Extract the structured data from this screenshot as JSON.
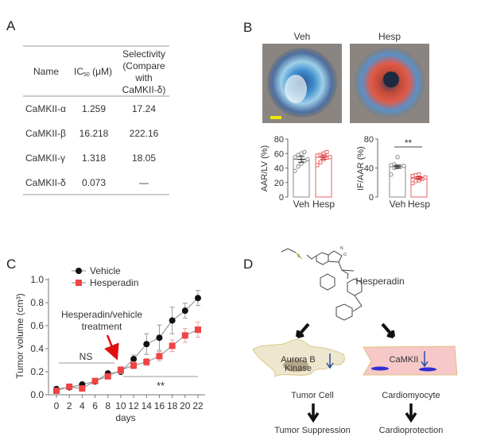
{
  "panels": {
    "a": "A",
    "b": "B",
    "c": "C",
    "d": "D"
  },
  "table": {
    "headers": {
      "name": "Name",
      "ic50": "IC",
      "ic50_sub": "50",
      "ic50_unit": " (μM)",
      "selectivity": [
        "Selectivity",
        "(Compare",
        "with",
        "CaMKII-δ)"
      ]
    },
    "rows": [
      {
        "name": "CaMKII-α",
        "ic50": "1.259",
        "selectivity": "17.24"
      },
      {
        "name": "CaMKII-β",
        "ic50": "16.218",
        "selectivity": "222.16"
      },
      {
        "name": "CaMKII-γ",
        "ic50": "1.318",
        "selectivity": "18.05"
      },
      {
        "name": "CaMKII-δ",
        "ic50": "0.073",
        "selectivity": "—"
      }
    ]
  },
  "heart_images": {
    "veh_label": "Veh",
    "hesp_label": "Hesp",
    "scale_bar_color": "#f2e600"
  },
  "chart_data": [
    {
      "type": "bar",
      "ylabel": "AAR/LV (%)",
      "categories": [
        "Veh",
        "Hesp"
      ],
      "values": [
        52,
        55
      ],
      "errors": [
        4,
        3
      ],
      "points": [
        [
          36,
          42,
          46,
          50,
          52,
          55,
          58,
          60,
          62
        ],
        [
          44,
          48,
          52,
          54,
          55,
          57,
          58,
          60,
          62
        ]
      ],
      "yticks": [
        "0",
        "20",
        "40",
        "60",
        "80"
      ],
      "ylim": [
        0,
        80
      ],
      "colors": [
        "#888888",
        "#e86060"
      ]
    },
    {
      "type": "bar",
      "ylabel": "IF/AAR (%)",
      "categories": [
        "Veh",
        "Hesp"
      ],
      "values": [
        42,
        26
      ],
      "errors": [
        2,
        2
      ],
      "points": [
        [
          31,
          40,
          41,
          42,
          43,
          44,
          45,
          55
        ],
        [
          19,
          22,
          23,
          25,
          27,
          29,
          30,
          31
        ]
      ],
      "yticks": [
        "0",
        "40",
        "80"
      ],
      "ylim": [
        0,
        80
      ],
      "significance": "**",
      "colors": [
        "#888888",
        "#e86060"
      ]
    },
    {
      "type": "line",
      "xlabel": "days",
      "ylabel": "Tumor volume (cm³)",
      "x": [
        0,
        2,
        4,
        6,
        8,
        10,
        12,
        14,
        16,
        18,
        20,
        22
      ],
      "xlim": [
        0,
        22
      ],
      "ylim": [
        0,
        1.0
      ],
      "yticks": [
        "0.0",
        "0.2",
        "0.4",
        "0.6",
        "0.8",
        "1.0"
      ],
      "series": [
        {
          "name": "Vehicle",
          "color": "#111111",
          "marker": "circle",
          "values": [
            0.05,
            0.065,
            0.09,
            0.115,
            0.185,
            0.2,
            0.31,
            0.44,
            0.495,
            0.645,
            0.73,
            0.84
          ],
          "errors": [
            0.01,
            0.01,
            0.01,
            0.015,
            0.02,
            0.02,
            0.035,
            0.09,
            0.11,
            0.115,
            0.065,
            0.065
          ]
        },
        {
          "name": "Hesperadin",
          "color": "#ee4444",
          "marker": "square",
          "values": [
            0.035,
            0.07,
            0.055,
            0.12,
            0.16,
            0.215,
            0.255,
            0.285,
            0.335,
            0.425,
            0.515,
            0.565
          ],
          "errors": [
            0.01,
            0.01,
            0.01,
            0.015,
            0.02,
            0.03,
            0.03,
            0.03,
            0.04,
            0.05,
            0.06,
            0.065
          ]
        }
      ],
      "annotations": {
        "treatment": [
          "Hesperadin/vehicle",
          "treatment"
        ],
        "ns": "NS",
        "sig": "**"
      }
    }
  ],
  "diagram": {
    "drug": "Hesperadin",
    "tumor_kinase": [
      "Aurora B",
      "Kinase"
    ],
    "cardio_target": "CaMKII",
    "tumor_cell": "Tumor Cell",
    "cardiomyocyte": "Cardiomyocyte",
    "tumor_outcome": "Tumor Suppression",
    "cardio_outcome": "Cardioprotection"
  }
}
